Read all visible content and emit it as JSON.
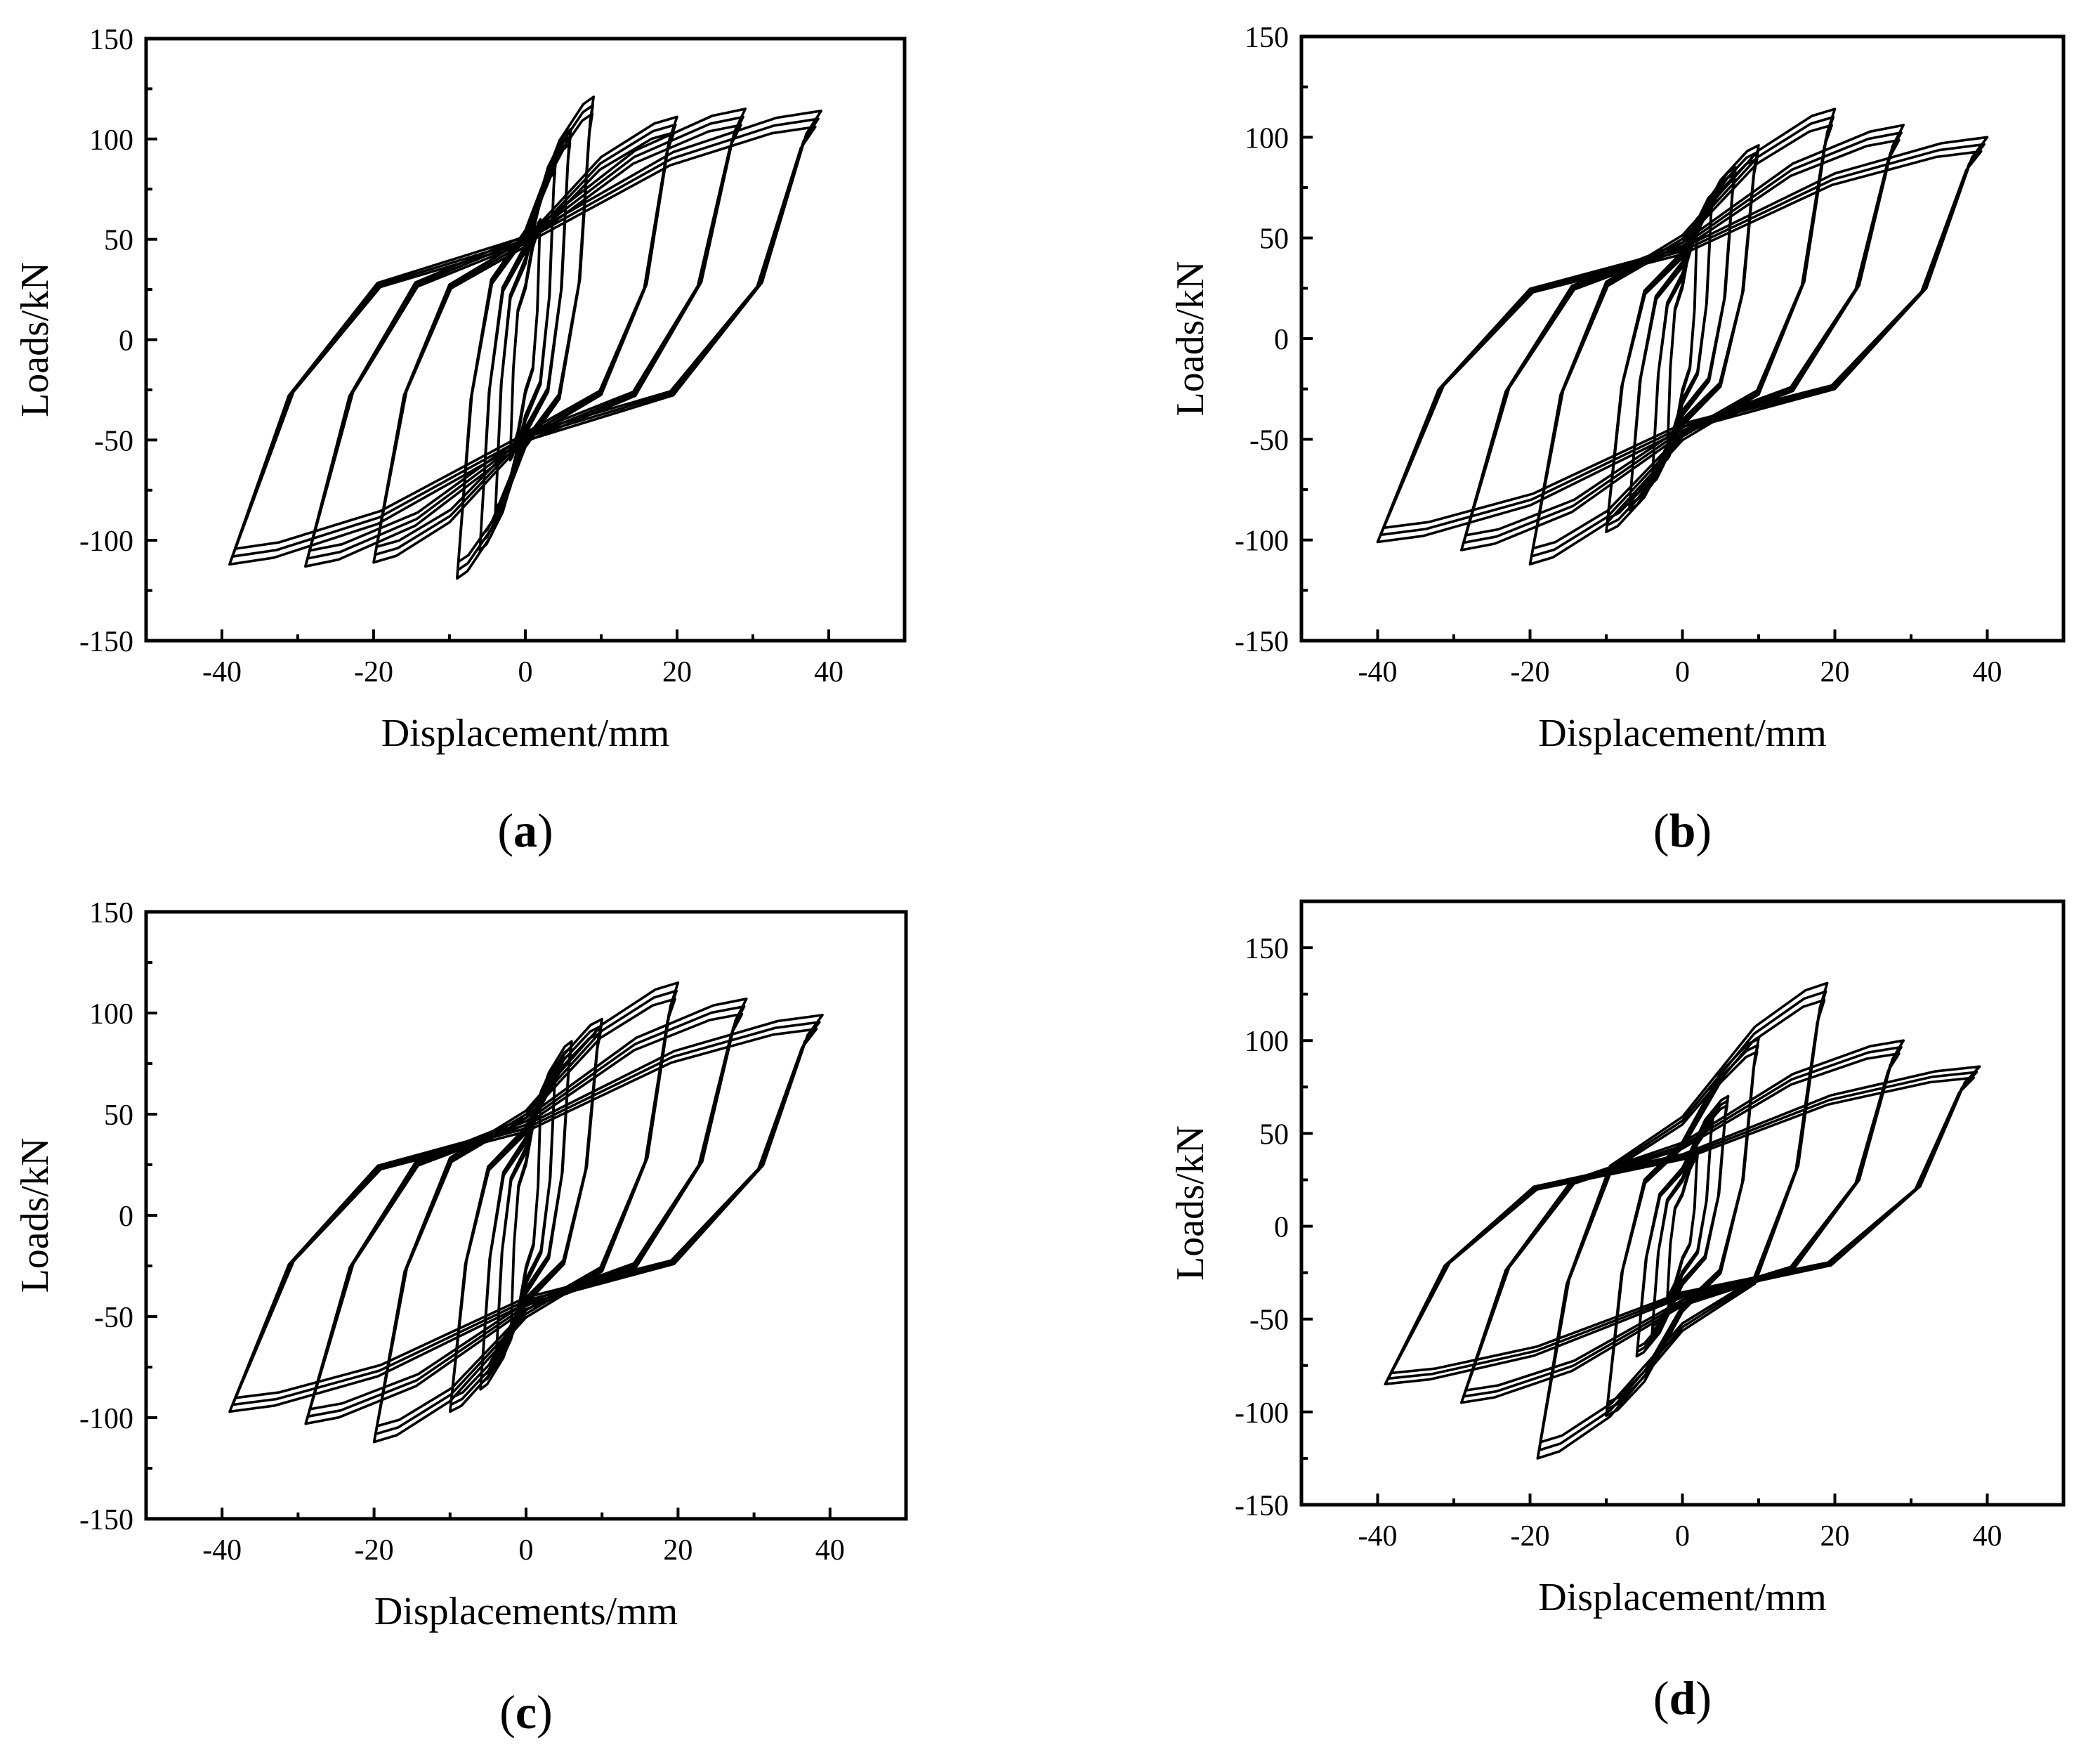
{
  "chart_data": [
    {
      "id": "a",
      "type": "line",
      "panel_label": "a",
      "xlabel": "Displacement/mm",
      "ylabel": "Loads/kN",
      "xlim": [
        -50,
        50
      ],
      "ylim": [
        -150,
        150
      ],
      "xticks": [
        "-40",
        "-20",
        "0",
        "20",
        "40"
      ],
      "yticks": [
        "-150",
        "-100",
        "-50",
        "0",
        "50",
        "100",
        "150"
      ],
      "loops": [
        {
          "amplitude": 2,
          "peak_pos": 60,
          "peak_neg": -60,
          "repeats": 3
        },
        {
          "amplitude": 4,
          "peak_pos": 90,
          "peak_neg": -90,
          "repeats": 3
        },
        {
          "amplitude": 6,
          "peak_pos": 105,
          "peak_neg": -105,
          "repeats": 3
        },
        {
          "amplitude": 9,
          "peak_pos": 121,
          "peak_neg": -119,
          "repeats": 3
        },
        {
          "amplitude": 20,
          "peak_pos": 111,
          "peak_neg": -111,
          "repeats": 3
        },
        {
          "amplitude": 29,
          "peak_pos": 115,
          "peak_neg": -113,
          "repeats": 3
        },
        {
          "amplitude": 39,
          "peak_pos": 114,
          "peak_neg": -112,
          "repeats": 3
        }
      ]
    },
    {
      "id": "b",
      "type": "line",
      "panel_label": "b",
      "xlabel": "Displacement/mm",
      "ylabel": "Loads/kN",
      "xlim": [
        -50,
        50
      ],
      "ylim": [
        -150,
        150
      ],
      "xticks": [
        "-40",
        "-20",
        "0",
        "20",
        "40"
      ],
      "yticks": [
        "-150",
        "-100",
        "-50",
        "0",
        "50",
        "100",
        "150"
      ],
      "loops": [
        {
          "amplitude": 2,
          "peak_pos": 60,
          "peak_neg": -60,
          "repeats": 3
        },
        {
          "amplitude": 4,
          "peak_pos": 72,
          "peak_neg": -72,
          "repeats": 3
        },
        {
          "amplitude": 7,
          "peak_pos": 85,
          "peak_neg": -85,
          "repeats": 3
        },
        {
          "amplitude": 10,
          "peak_pos": 96,
          "peak_neg": -96,
          "repeats": 3
        },
        {
          "amplitude": 20,
          "peak_pos": 114,
          "peak_neg": -112,
          "repeats": 3
        },
        {
          "amplitude": 29,
          "peak_pos": 106,
          "peak_neg": -105,
          "repeats": 3
        },
        {
          "amplitude": 40,
          "peak_pos": 100,
          "peak_neg": -101,
          "repeats": 3
        }
      ]
    },
    {
      "id": "c",
      "type": "line",
      "panel_label": "c",
      "xlabel": "Displacements/mm",
      "ylabel": "Loads/kN",
      "xlim": [
        -50,
        50
      ],
      "ylim": [
        -150,
        150
      ],
      "xticks": [
        "-40",
        "-20",
        "0",
        "20",
        "40"
      ],
      "yticks": [
        "-150",
        "-100",
        "-50",
        "0",
        "50",
        "100",
        "150"
      ],
      "loops": [
        {
          "amplitude": 2,
          "peak_pos": 60,
          "peak_neg": -60,
          "repeats": 3
        },
        {
          "amplitude": 4,
          "peak_pos": 75,
          "peak_neg": -75,
          "repeats": 3
        },
        {
          "amplitude": 6,
          "peak_pos": 86,
          "peak_neg": -86,
          "repeats": 3
        },
        {
          "amplitude": 10,
          "peak_pos": 97,
          "peak_neg": -97,
          "repeats": 3
        },
        {
          "amplitude": 20,
          "peak_pos": 115,
          "peak_neg": -112,
          "repeats": 3
        },
        {
          "amplitude": 29,
          "peak_pos": 107,
          "peak_neg": -103,
          "repeats": 3
        },
        {
          "amplitude": 39,
          "peak_pos": 99,
          "peak_neg": -97,
          "repeats": 3
        }
      ]
    },
    {
      "id": "d",
      "type": "line",
      "panel_label": "d",
      "xlabel": "Displacement/mm",
      "ylabel": "Loads/kN",
      "xlim": [
        -50,
        50
      ],
      "ylim": [
        -150,
        175
      ],
      "xticks": [
        "-40",
        "-20",
        "0",
        "20",
        "40"
      ],
      "yticks": [
        "-150",
        "-100",
        "-50",
        "0",
        "50",
        "100",
        "150"
      ],
      "loops": [
        {
          "amplitude": 2,
          "peak_pos": 40,
          "peak_neg": -40,
          "repeats": 3
        },
        {
          "amplitude": 4,
          "peak_pos": 58,
          "peak_neg": -58,
          "repeats": 3
        },
        {
          "amplitude": 6,
          "peak_pos": 70,
          "peak_neg": -70,
          "repeats": 3
        },
        {
          "amplitude": 10,
          "peak_pos": 101,
          "peak_neg": -102,
          "repeats": 3
        },
        {
          "amplitude": 19,
          "peak_pos": 131,
          "peak_neg": -125,
          "repeats": 3
        },
        {
          "amplitude": 29,
          "peak_pos": 100,
          "peak_neg": -95,
          "repeats": 3
        },
        {
          "amplitude": 39,
          "peak_pos": 86,
          "peak_neg": -85,
          "repeats": 3
        }
      ]
    }
  ]
}
